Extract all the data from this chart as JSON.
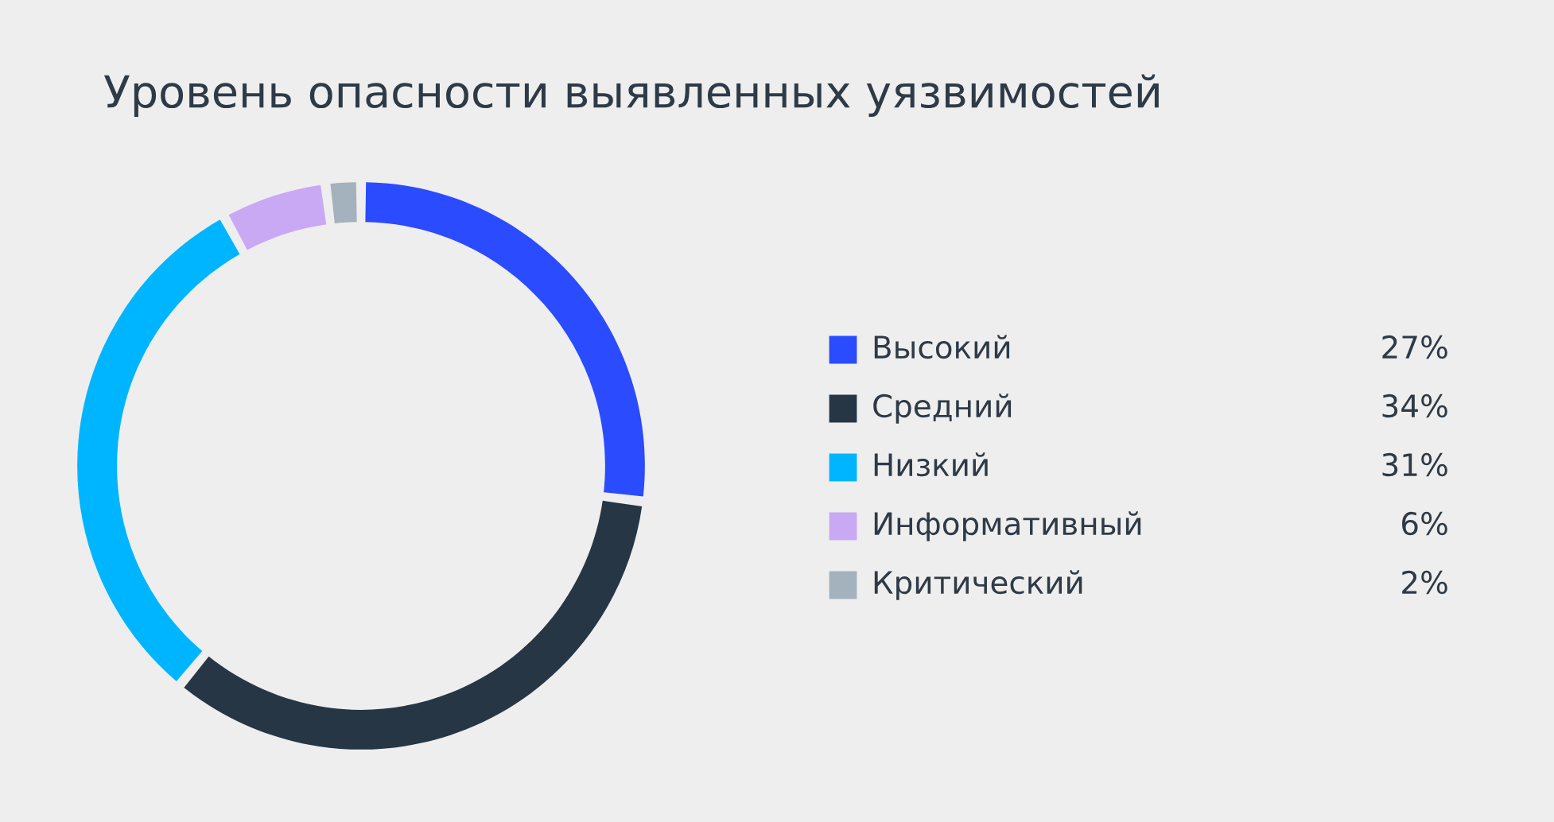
{
  "chart_data": {
    "type": "donut",
    "title": "Уровень опасности выявленных уязвимостей",
    "categories": [
      "Высокий",
      "Средний",
      "Низкий",
      "Информативный",
      "Критический"
    ],
    "values": [
      27,
      34,
      31,
      6,
      2
    ],
    "value_labels": [
      "27%",
      "34%",
      "31%",
      "6%",
      "2%"
    ],
    "colors": [
      "#2b4bff",
      "#263645",
      "#00b5ff",
      "#c9a8f4",
      "#a3b2bd"
    ],
    "legend": "right"
  }
}
